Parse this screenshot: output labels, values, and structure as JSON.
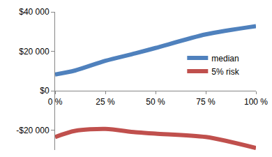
{
  "chart_data": {
    "type": "line",
    "x": [
      0,
      10,
      25,
      40,
      50,
      75,
      100
    ],
    "series": [
      {
        "name": "median",
        "color": "#4f81bd",
        "values": [
          8300,
          10300,
          15200,
          19000,
          21700,
          28600,
          32800
        ]
      },
      {
        "name": "5% risk",
        "color": "#c0504d",
        "values": [
          -23400,
          -20300,
          -19300,
          -21000,
          -21700,
          -23400,
          -29000
        ]
      }
    ],
    "xlim": [
      0,
      100
    ],
    "xticks": [
      {
        "value": 0,
        "label": "0 %"
      },
      {
        "value": 25,
        "label": "25 %"
      },
      {
        "value": 50,
        "label": "50 %"
      },
      {
        "value": 75,
        "label": "75 %"
      },
      {
        "value": 100,
        "label": "100 %"
      }
    ],
    "ylim": [
      -30000,
      40000
    ],
    "yticks": [
      {
        "value": -20000,
        "label": "-$20 000"
      },
      {
        "value": 0,
        "label": "$0"
      },
      {
        "value": 20000,
        "label": "$20 000"
      },
      {
        "value": 40000,
        "label": "$40 000"
      }
    ],
    "grid": false,
    "legend": "right"
  }
}
